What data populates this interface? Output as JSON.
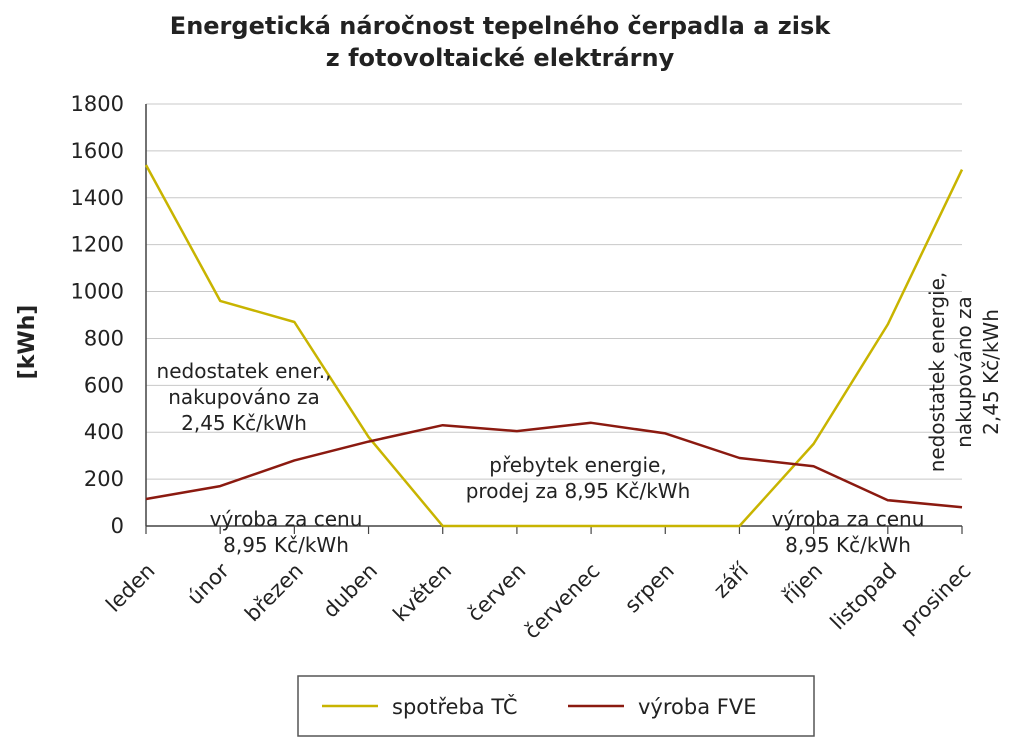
{
  "chart_data": {
    "type": "line",
    "title": "Energetická náročnost tepelného čerpadla a zisk z fotovoltaické elektrárny",
    "title_lines": [
      "Energetická náročnost tepelného čerpadla a zisk",
      "z fotovoltaické elektrárny"
    ],
    "ylabel": "[kWh]",
    "xlabel": "",
    "ylim": [
      0,
      1800
    ],
    "yticks": [
      0,
      200,
      400,
      600,
      800,
      1000,
      1200,
      1400,
      1600,
      1800
    ],
    "grid": true,
    "legend_position": "bottom",
    "categories": [
      "leden",
      "únor",
      "březen",
      "duben",
      "květen",
      "červen",
      "červenec",
      "srpen",
      "září",
      "říjen",
      "listopad",
      "prosinec"
    ],
    "series": [
      {
        "name": "spotřeba TČ",
        "color": "#c8b400",
        "values": [
          1540,
          960,
          870,
          380,
          0,
          0,
          0,
          0,
          0,
          350,
          860,
          1520
        ]
      },
      {
        "name": "výroba FVE",
        "color": "#8b1a10",
        "values": [
          115,
          170,
          280,
          360,
          430,
          405,
          440,
          395,
          290,
          255,
          110,
          80
        ]
      }
    ],
    "annotations": [
      {
        "lines": [
          "nedostatek ener.,",
          "nakupováno za",
          "2,45 Kč/kWh"
        ]
      },
      {
        "lines": [
          "výroba za cenu",
          "8,95 Kč/kWh"
        ]
      },
      {
        "lines": [
          "přebytek energie,",
          "prodej za 8,95 Kč/kWh"
        ]
      },
      {
        "lines": [
          "výroba za cenu",
          "8,95 Kč/kWh"
        ]
      },
      {
        "lines": [
          "nedostatek energie,",
          "nakupováno za",
          "2,45 Kč/kWh"
        ]
      }
    ]
  }
}
